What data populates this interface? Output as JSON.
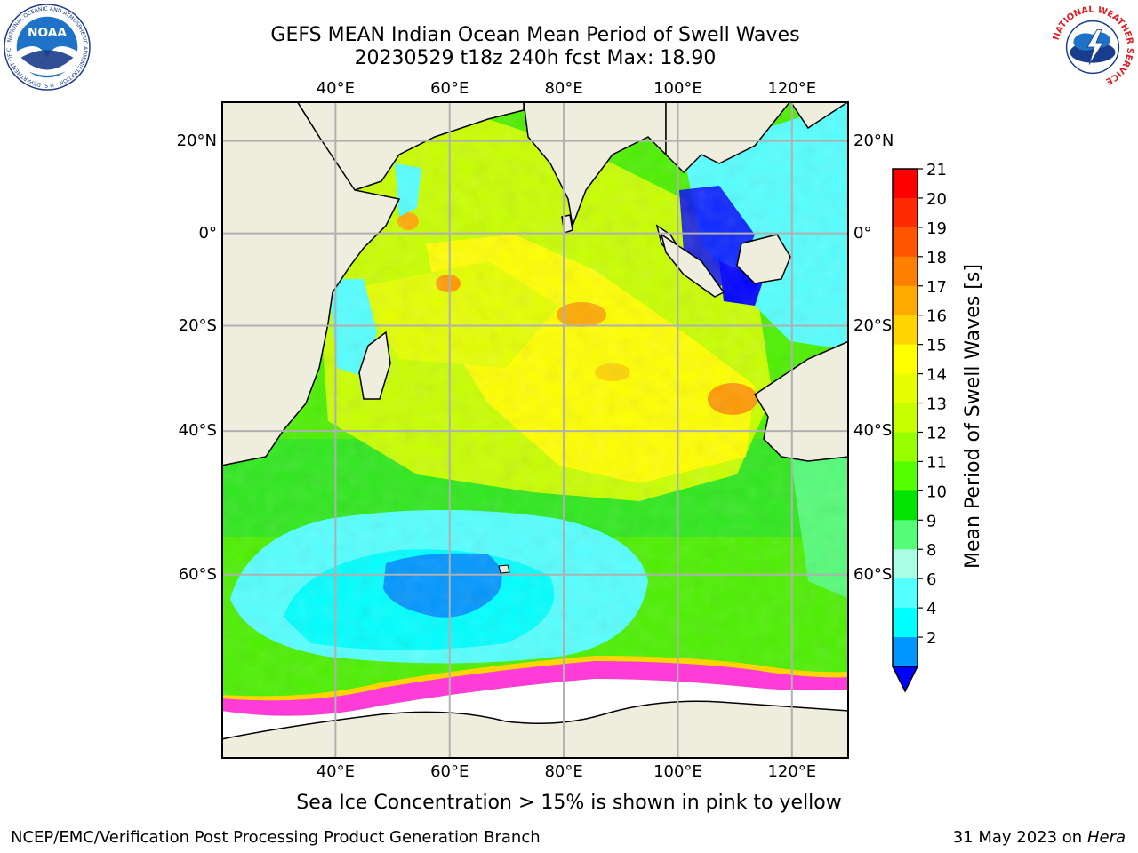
{
  "header": {
    "title_line1": "GEFS MEAN Indian Ocean Mean Period of Swell Waves",
    "title_line2": "20230529 t18z 240h fcst   Max: 18.90"
  },
  "map": {
    "lon_range": [
      20,
      130
    ],
    "lat_range": [
      -75,
      28
    ],
    "lon_ticks": [
      "40°E",
      "60°E",
      "80°E",
      "100°E",
      "120°E"
    ],
    "lon_values": [
      40,
      60,
      80,
      100,
      120
    ],
    "lat_ticks": [
      "20°N",
      "0°",
      "20°S",
      "40°S",
      "60°S"
    ],
    "lat_values": [
      20,
      0,
      -20,
      -40,
      -60
    ],
    "land_color": "#efedde",
    "grid": true
  },
  "colorbar": {
    "label": "Mean Period of Swell Waves [s]",
    "ticks": [
      "21",
      "20",
      "19",
      "18",
      "17",
      "16",
      "15",
      "14",
      "13",
      "12",
      "11",
      "10",
      "9",
      "8",
      "6",
      "4",
      "2"
    ],
    "colors": [
      "#ff0000",
      "#ff2a00",
      "#ff5500",
      "#ff7f00",
      "#ffaa00",
      "#ffd400",
      "#ffff00",
      "#e5ff00",
      "#c8ff00",
      "#96ff00",
      "#55ff00",
      "#00e400",
      "#54fc78",
      "#a8ffe6",
      "#55ffff",
      "#00ffff",
      "#0096ff"
    ],
    "under_color": "#0000ff"
  },
  "caption": "Sea Ice Concentration > 15% is shown in pink to yellow",
  "footer": {
    "left": "NCEP/EMC/Verification Post Processing Product Generation Branch",
    "right_prefix": "31 May 2023 on",
    "right_machine": "Hera"
  },
  "logos": {
    "noaa_text": "NOAA",
    "noaa_ring_text": "NATIONAL OCEANIC AND ATMOSPHERIC ADMINISTRATION · U.S. DEPARTMENT OF COMMERCE",
    "nws_ring_text": "NATIONAL WEATHER SERVICE"
  }
}
